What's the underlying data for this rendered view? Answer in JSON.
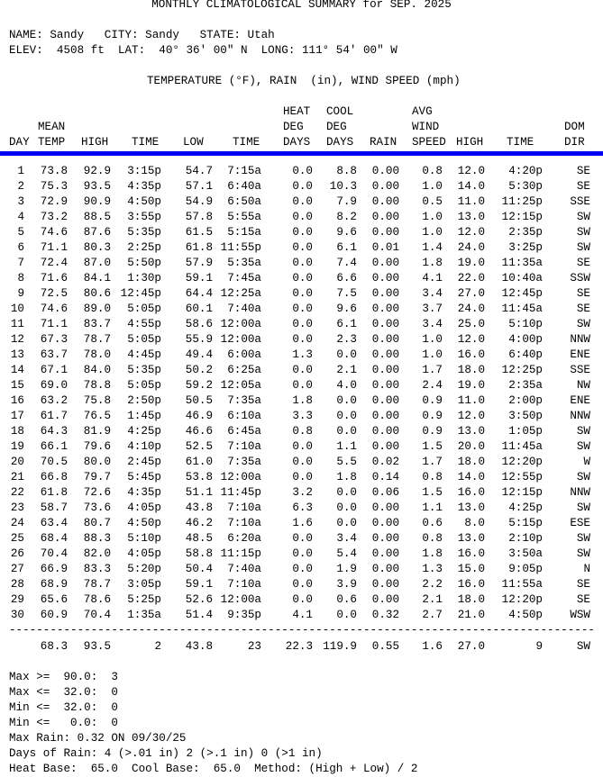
{
  "title": "MONTHLY CLIMATOLOGICAL SUMMARY for SEP. 2025",
  "location_line": "NAME: Sandy   CITY: Sandy   STATE: Utah",
  "elev_line": "ELEV:  4508 ft  LAT:  40° 36' 00\" N  LONG: 111° 54' 00\" W",
  "units_line": "TEMPERATURE (°F), RAIN  (in), WIND SPEED (mph)",
  "headers": {
    "row1": {
      "heat": "HEAT",
      "cool": "COOL",
      "avg": "AVG"
    },
    "row2": {
      "mean": "MEAN",
      "heat": "DEG",
      "cool": "DEG",
      "wind": "WIND",
      "dom": "DOM"
    },
    "row3": {
      "day": "DAY",
      "temp": "TEMP",
      "high": "HIGH",
      "time": "TIME",
      "low": "LOW",
      "time2": "TIME",
      "days": "DAYS",
      "days2": "DAYS",
      "rain": "RAIN",
      "speed": "SPEED",
      "whigh": "HIGH",
      "wtime": "TIME",
      "dir": "DIR"
    }
  },
  "rows": [
    [
      "1",
      "73.8",
      "92.9",
      "3:15p",
      "54.7",
      "7:15a",
      "0.0",
      "8.8",
      "0.00",
      "0.8",
      "12.0",
      "4:20p",
      "SE"
    ],
    [
      "2",
      "75.3",
      "93.5",
      "4:35p",
      "57.1",
      "6:40a",
      "0.0",
      "10.3",
      "0.00",
      "1.0",
      "14.0",
      "5:30p",
      "SE"
    ],
    [
      "3",
      "72.9",
      "90.9",
      "4:50p",
      "54.9",
      "6:50a",
      "0.0",
      "7.9",
      "0.00",
      "0.5",
      "11.0",
      "11:25p",
      "SSE"
    ],
    [
      "4",
      "73.2",
      "88.5",
      "3:55p",
      "57.8",
      "5:55a",
      "0.0",
      "8.2",
      "0.00",
      "1.0",
      "13.0",
      "12:15p",
      "SW"
    ],
    [
      "5",
      "74.6",
      "87.6",
      "5:35p",
      "61.5",
      "5:15a",
      "0.0",
      "9.6",
      "0.00",
      "1.0",
      "12.0",
      "2:35p",
      "SW"
    ],
    [
      "6",
      "71.1",
      "80.3",
      "2:25p",
      "61.8",
      "11:55p",
      "0.0",
      "6.1",
      "0.01",
      "1.4",
      "24.0",
      "3:25p",
      "SW"
    ],
    [
      "7",
      "72.4",
      "87.0",
      "5:50p",
      "57.9",
      "5:35a",
      "0.0",
      "7.4",
      "0.00",
      "1.8",
      "19.0",
      "11:35a",
      "SE"
    ],
    [
      "8",
      "71.6",
      "84.1",
      "1:30p",
      "59.1",
      "7:45a",
      "0.0",
      "6.6",
      "0.00",
      "4.1",
      "22.0",
      "10:40a",
      "SSW"
    ],
    [
      "9",
      "72.5",
      "80.6",
      "12:45p",
      "64.4",
      "12:25a",
      "0.0",
      "7.5",
      "0.00",
      "3.4",
      "27.0",
      "12:45p",
      "SE"
    ],
    [
      "10",
      "74.6",
      "89.0",
      "5:05p",
      "60.1",
      "7:40a",
      "0.0",
      "9.6",
      "0.00",
      "3.7",
      "24.0",
      "11:45a",
      "SE"
    ],
    [
      "11",
      "71.1",
      "83.7",
      "4:55p",
      "58.6",
      "12:00a",
      "0.0",
      "6.1",
      "0.00",
      "3.4",
      "25.0",
      "5:10p",
      "SW"
    ],
    [
      "12",
      "67.3",
      "78.7",
      "5:05p",
      "55.9",
      "12:00a",
      "0.0",
      "2.3",
      "0.00",
      "1.0",
      "12.0",
      "4:00p",
      "NNW"
    ],
    [
      "13",
      "63.7",
      "78.0",
      "4:45p",
      "49.4",
      "6:00a",
      "1.3",
      "0.0",
      "0.00",
      "1.0",
      "16.0",
      "6:40p",
      "ENE"
    ],
    [
      "14",
      "67.1",
      "84.0",
      "5:35p",
      "50.2",
      "6:25a",
      "0.0",
      "2.1",
      "0.00",
      "1.7",
      "18.0",
      "12:25p",
      "SSE"
    ],
    [
      "15",
      "69.0",
      "78.8",
      "5:05p",
      "59.2",
      "12:05a",
      "0.0",
      "4.0",
      "0.00",
      "2.4",
      "19.0",
      "2:35a",
      "NW"
    ],
    [
      "16",
      "63.2",
      "75.8",
      "2:50p",
      "50.5",
      "7:35a",
      "1.8",
      "0.0",
      "0.00",
      "0.9",
      "11.0",
      "2:00p",
      "ENE"
    ],
    [
      "17",
      "61.7",
      "76.5",
      "1:45p",
      "46.9",
      "6:10a",
      "3.3",
      "0.0",
      "0.00",
      "0.9",
      "12.0",
      "3:50p",
      "NNW"
    ],
    [
      "18",
      "64.3",
      "81.9",
      "4:25p",
      "46.6",
      "6:45a",
      "0.8",
      "0.0",
      "0.00",
      "0.9",
      "13.0",
      "1:05p",
      "SW"
    ],
    [
      "19",
      "66.1",
      "79.6",
      "4:10p",
      "52.5",
      "7:10a",
      "0.0",
      "1.1",
      "0.00",
      "1.5",
      "20.0",
      "11:45a",
      "SW"
    ],
    [
      "20",
      "70.5",
      "80.0",
      "2:45p",
      "61.0",
      "7:35a",
      "0.0",
      "5.5",
      "0.02",
      "1.7",
      "18.0",
      "12:20p",
      "W"
    ],
    [
      "21",
      "66.8",
      "79.7",
      "5:45p",
      "53.8",
      "12:00a",
      "0.0",
      "1.8",
      "0.14",
      "0.8",
      "14.0",
      "12:55p",
      "SW"
    ],
    [
      "22",
      "61.8",
      "72.6",
      "4:35p",
      "51.1",
      "11:45p",
      "3.2",
      "0.0",
      "0.06",
      "1.5",
      "16.0",
      "12:15p",
      "NNW"
    ],
    [
      "23",
      "58.7",
      "73.6",
      "4:05p",
      "43.8",
      "7:10a",
      "6.3",
      "0.0",
      "0.00",
      "1.1",
      "13.0",
      "4:25p",
      "SW"
    ],
    [
      "24",
      "63.4",
      "80.7",
      "4:50p",
      "46.2",
      "7:10a",
      "1.6",
      "0.0",
      "0.00",
      "0.6",
      "8.0",
      "5:15p",
      "ESE"
    ],
    [
      "25",
      "68.4",
      "88.3",
      "5:10p",
      "48.5",
      "6:20a",
      "0.0",
      "3.4",
      "0.00",
      "0.8",
      "13.0",
      "2:10p",
      "SW"
    ],
    [
      "26",
      "70.4",
      "82.0",
      "4:05p",
      "58.8",
      "11:15p",
      "0.0",
      "5.4",
      "0.00",
      "1.8",
      "16.0",
      "3:50a",
      "SW"
    ],
    [
      "27",
      "66.9",
      "83.3",
      "5:20p",
      "50.4",
      "7:40a",
      "0.0",
      "1.9",
      "0.00",
      "1.3",
      "15.0",
      "9:05p",
      "N"
    ],
    [
      "28",
      "68.9",
      "78.7",
      "3:05p",
      "59.1",
      "7:10a",
      "0.0",
      "3.9",
      "0.00",
      "2.2",
      "16.0",
      "11:55a",
      "SE"
    ],
    [
      "29",
      "65.6",
      "78.6",
      "5:25p",
      "52.6",
      "12:00a",
      "0.0",
      "0.6",
      "0.00",
      "2.1",
      "18.0",
      "12:20p",
      "SE"
    ],
    [
      "30",
      "60.9",
      "70.4",
      "1:35a",
      "51.4",
      "9:35p",
      "4.1",
      "0.0",
      "0.32",
      "2.7",
      "21.0",
      "4:50p",
      "WSW"
    ]
  ],
  "totals": [
    "",
    "68.3",
    "93.5",
    "2",
    "43.8",
    "23",
    "22.3",
    "119.9",
    "0.55",
    "1.6",
    "27.0",
    "9",
    "SW"
  ],
  "summary": [
    "Max >=  90.0:  3",
    "Max <=  32.0:  0",
    "Min <=  32.0:  0",
    "Min <=   0.0:  0",
    "Max Rain: 0.32 ON 09/30/25",
    "Days of Rain: 4 (>.01 in) 2 (>.1 in) 0 (>1 in)",
    "Heat Base:  65.0  Cool Base:  65.0  Method: (High + Low) / 2"
  ],
  "colors": {
    "separator": "#0000ee",
    "text": "#000000"
  }
}
